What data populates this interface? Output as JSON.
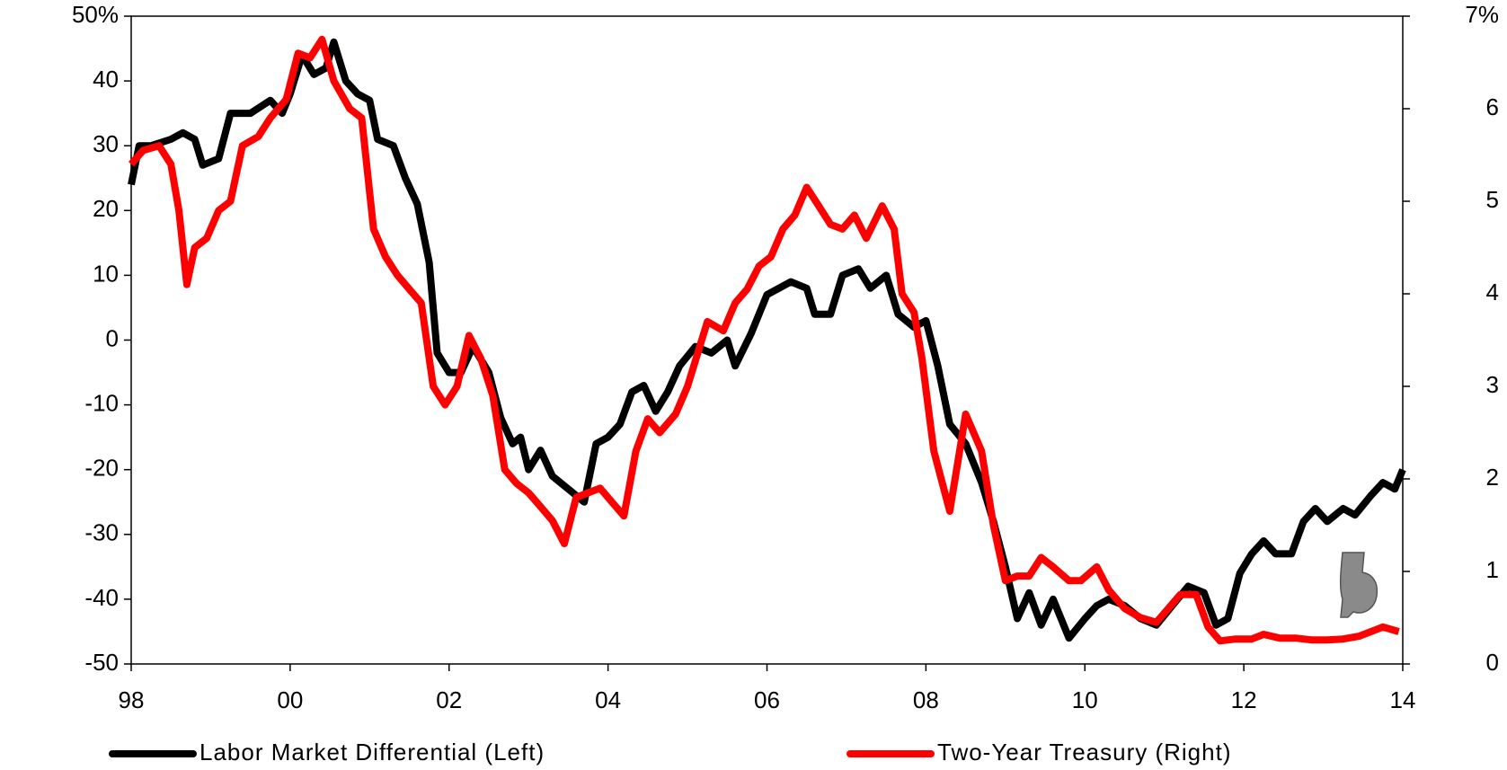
{
  "chart_data": {
    "type": "line",
    "xlim": [
      1998,
      2014
    ],
    "xticks": [
      {
        "value": 1998,
        "label": "98"
      },
      {
        "value": 2000,
        "label": "00"
      },
      {
        "value": 2002,
        "label": "02"
      },
      {
        "value": 2004,
        "label": "04"
      },
      {
        "value": 2006,
        "label": "06"
      },
      {
        "value": 2008,
        "label": "08"
      },
      {
        "value": 2010,
        "label": "10"
      },
      {
        "value": 2012,
        "label": "12"
      },
      {
        "value": 2014,
        "label": "14"
      }
    ],
    "ylim": [
      -50,
      50
    ],
    "yticks": [
      -50,
      -40,
      -30,
      -20,
      -10,
      0,
      10,
      20,
      30,
      40,
      {
        "value": 50,
        "label": "50%"
      }
    ],
    "y2lim": [
      0,
      7
    ],
    "y2ticks": [
      0,
      1,
      2,
      3,
      4,
      5,
      6,
      {
        "value": 7,
        "label": "7%"
      }
    ],
    "legend": "bottom",
    "series": [
      {
        "name": "Labor Market Differential (Left)",
        "color": "#000000",
        "axis": "y",
        "x": [
          1998.0,
          1998.1,
          1998.25,
          1998.5,
          1998.65,
          1998.8,
          1998.9,
          1999.1,
          1999.25,
          1999.5,
          1999.75,
          1999.9,
          2000.0,
          2000.15,
          2000.3,
          2000.45,
          2000.55,
          2000.7,
          2000.85,
          2001.0,
          2001.1,
          2001.3,
          2001.45,
          2001.6,
          2001.75,
          2001.85,
          2002.0,
          2002.15,
          2002.3,
          2002.5,
          2002.65,
          2002.8,
          2002.9,
          2003.0,
          2003.15,
          2003.3,
          2003.5,
          2003.7,
          2003.85,
          2004.0,
          2004.15,
          2004.3,
          2004.45,
          2004.6,
          2004.75,
          2004.9,
          2005.1,
          2005.3,
          2005.5,
          2005.6,
          2005.8,
          2006.0,
          2006.15,
          2006.3,
          2006.5,
          2006.6,
          2006.8,
          2006.95,
          2007.15,
          2007.3,
          2007.5,
          2007.65,
          2007.85,
          2008.0,
          2008.15,
          2008.3,
          2008.5,
          2008.7,
          2008.85,
          2009.0,
          2009.15,
          2009.3,
          2009.45,
          2009.6,
          2009.8,
          2010.0,
          2010.15,
          2010.3,
          2010.5,
          2010.7,
          2010.9,
          2011.1,
          2011.3,
          2011.5,
          2011.65,
          2011.8,
          2011.95,
          2012.1,
          2012.25,
          2012.4,
          2012.6,
          2012.75,
          2012.9,
          2013.05,
          2013.25,
          2013.4,
          2013.6,
          2013.75,
          2013.9,
          2014.0
        ],
        "values": [
          24,
          30,
          30,
          31,
          32,
          31,
          27,
          28,
          35,
          35,
          37,
          35,
          38,
          44,
          41,
          42,
          46,
          40,
          38,
          37,
          31,
          30,
          25,
          21,
          12,
          -2,
          -5,
          -5,
          -1,
          -5,
          -12,
          -16,
          -15,
          -20,
          -17,
          -21,
          -23,
          -25,
          -16,
          -15,
          -13,
          -8,
          -7,
          -11,
          -8,
          -4,
          -1,
          -2,
          0,
          -4,
          1,
          7,
          8,
          9,
          8,
          4,
          4,
          10,
          11,
          8,
          10,
          4,
          2,
          3,
          -4,
          -13,
          -16,
          -22,
          -28,
          -35,
          -43,
          -39,
          -44,
          -40,
          -46,
          -43,
          -41,
          -40,
          -41,
          -43,
          -44,
          -41,
          -38,
          -39,
          -44,
          -43,
          -36,
          -33,
          -31,
          -33,
          -33,
          -28,
          -26,
          -28,
          -26,
          -27,
          -24,
          -22,
          -23,
          -20
        ]
      },
      {
        "name": "Two-Year Treasury (Right)",
        "color": "#ff0000",
        "axis": "y2",
        "x": [
          1998.0,
          1998.15,
          1998.35,
          1998.5,
          1998.6,
          1998.7,
          1998.8,
          1998.95,
          1999.1,
          1999.25,
          1999.4,
          1999.6,
          1999.75,
          1999.95,
          2000.1,
          2000.25,
          2000.4,
          2000.55,
          2000.75,
          2000.9,
          2001.05,
          2001.2,
          2001.35,
          2001.5,
          2001.65,
          2001.8,
          2001.95,
          2002.1,
          2002.25,
          2002.4,
          2002.55,
          2002.7,
          2002.85,
          2003.0,
          2003.15,
          2003.3,
          2003.45,
          2003.6,
          2003.75,
          2003.9,
          2004.05,
          2004.2,
          2004.35,
          2004.5,
          2004.65,
          2004.85,
          2005.0,
          2005.25,
          2005.45,
          2005.6,
          2005.75,
          2005.9,
          2006.05,
          2006.2,
          2006.35,
          2006.5,
          2006.65,
          2006.8,
          2006.95,
          2007.1,
          2007.25,
          2007.45,
          2007.6,
          2007.7,
          2007.85,
          2007.95,
          2008.1,
          2008.3,
          2008.5,
          2008.7,
          2008.85,
          2009.0,
          2009.15,
          2009.3,
          2009.45,
          2009.6,
          2009.8,
          2009.95,
          2010.15,
          2010.3,
          2010.5,
          2010.7,
          2010.9,
          2011.05,
          2011.2,
          2011.4,
          2011.55,
          2011.7,
          2011.9,
          2012.1,
          2012.25,
          2012.45,
          2012.65,
          2012.85,
          2013.05,
          2013.25,
          2013.45,
          2013.6,
          2013.75,
          2013.95
        ],
        "values": [
          5.4,
          5.55,
          5.6,
          5.4,
          4.9,
          4.1,
          4.5,
          4.6,
          4.9,
          5.0,
          5.6,
          5.7,
          5.9,
          6.1,
          6.6,
          6.55,
          6.75,
          6.3,
          6.0,
          5.9,
          4.7,
          4.4,
          4.2,
          4.05,
          3.9,
          3.0,
          2.8,
          3.0,
          3.55,
          3.3,
          2.9,
          2.1,
          1.95,
          1.85,
          1.7,
          1.55,
          1.3,
          1.8,
          1.85,
          1.9,
          1.75,
          1.6,
          2.3,
          2.65,
          2.5,
          2.7,
          3.0,
          3.7,
          3.6,
          3.9,
          4.05,
          4.3,
          4.4,
          4.7,
          4.85,
          5.15,
          4.95,
          4.75,
          4.7,
          4.85,
          4.6,
          4.95,
          4.7,
          4.0,
          3.8,
          3.3,
          2.3,
          1.65,
          2.7,
          2.3,
          1.5,
          0.9,
          0.95,
          0.95,
          1.15,
          1.05,
          0.9,
          0.9,
          1.05,
          0.8,
          0.6,
          0.5,
          0.45,
          0.6,
          0.75,
          0.75,
          0.4,
          0.25,
          0.27,
          0.27,
          0.32,
          0.28,
          0.28,
          0.26,
          0.26,
          0.27,
          0.3,
          0.35,
          0.4,
          0.35
        ]
      }
    ]
  }
}
